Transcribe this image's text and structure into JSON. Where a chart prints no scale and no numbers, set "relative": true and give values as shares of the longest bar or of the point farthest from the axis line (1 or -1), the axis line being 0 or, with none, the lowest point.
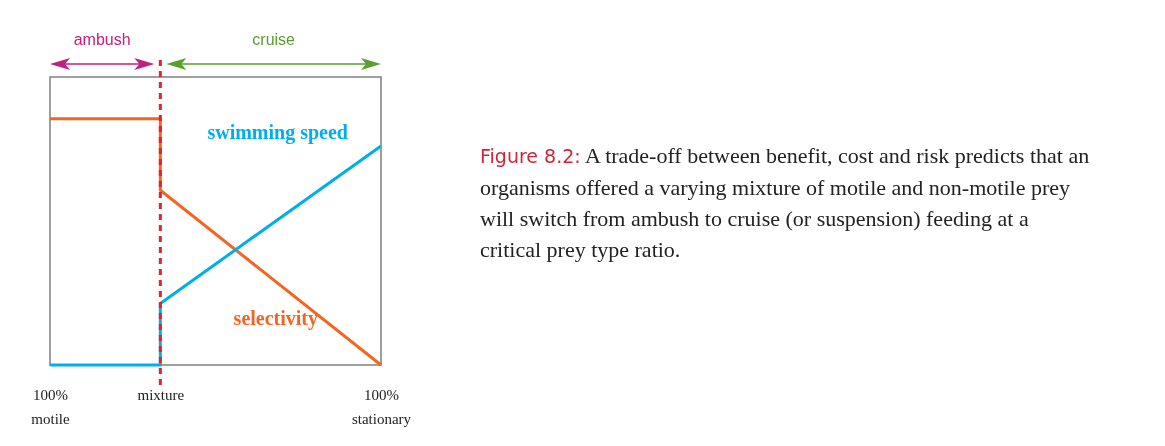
{
  "chart_data": {
    "type": "line",
    "relative": true,
    "categories": [
      "100% motile",
      "mixture",
      null,
      "100% stationary"
    ],
    "series": [
      {
        "name": "selectivity",
        "color": "#f26522",
        "x": [
          "100% motile",
          "mixture",
          "mixture",
          "100% stationary"
        ],
        "values": [
          1,
          1,
          0.71,
          0
        ]
      },
      {
        "name": "swimming speed",
        "color": "#00aeef",
        "x": [
          "100% motile",
          "mixture",
          "mixture",
          "100% stationary"
        ],
        "values": [
          0,
          0,
          0.25,
          0.89
        ]
      }
    ],
    "ref_lines": [
      {
        "axis": "x",
        "value": "mixture",
        "color": "#e8202a",
        "line_style": "dashed"
      }
    ],
    "annotations": [
      "ambush",
      "cruise",
      "Figure 8.2: A trade-off between benefit, cost and risk predicts that an organisms offered a varying mixture of motile and non-motile prey will switch from ambush to cruise (or suspension) feeding at a critical prey type ratio."
    ]
  }
}
